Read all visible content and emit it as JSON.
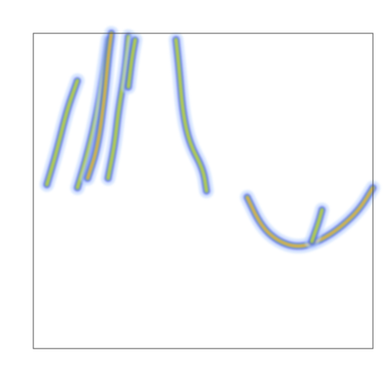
{
  "chart_data": {
    "type": "heatmap",
    "title": "",
    "xlabel": "",
    "ylabel": "",
    "axes_ticks_visible": false,
    "grid": false,
    "legend": "none",
    "colormap": [
      "#ffffff",
      "#bcd6ff",
      "#3a3aff",
      "#2e8b57",
      "#c8d84a",
      "#f0a04a"
    ],
    "series": [
      {
        "shape": "streak",
        "points": [
          [
            0.04,
            0.48
          ],
          [
            0.07,
            0.37
          ],
          [
            0.1,
            0.24
          ],
          [
            0.13,
            0.15
          ]
        ],
        "peak": 0.75
      },
      {
        "shape": "streak",
        "points": [
          [
            0.13,
            0.49
          ],
          [
            0.16,
            0.38
          ],
          [
            0.19,
            0.24
          ],
          [
            0.21,
            0.1
          ],
          [
            0.22,
            0.02
          ]
        ],
        "peak": 0.6
      },
      {
        "shape": "streak",
        "points": [
          [
            0.16,
            0.46
          ],
          [
            0.19,
            0.36
          ],
          [
            0.21,
            0.2
          ],
          [
            0.22,
            0.08
          ],
          [
            0.23,
            0.0
          ]
        ],
        "peak": 1.0
      },
      {
        "shape": "streak",
        "points": [
          [
            0.22,
            0.46
          ],
          [
            0.24,
            0.35
          ],
          [
            0.25,
            0.25
          ],
          [
            0.27,
            0.12
          ],
          [
            0.28,
            0.01
          ]
        ],
        "peak": 0.7
      },
      {
        "shape": "streak",
        "points": [
          [
            0.28,
            0.17
          ],
          [
            0.29,
            0.08
          ],
          [
            0.3,
            0.02
          ]
        ],
        "peak": 0.6
      },
      {
        "shape": "streak",
        "points": [
          [
            0.42,
            0.02
          ],
          [
            0.43,
            0.12
          ],
          [
            0.44,
            0.25
          ],
          [
            0.46,
            0.35
          ],
          [
            0.5,
            0.43
          ],
          [
            0.51,
            0.5
          ]
        ],
        "peak": 0.55
      },
      {
        "shape": "arc",
        "points": [
          [
            0.63,
            0.52
          ],
          [
            0.67,
            0.61
          ],
          [
            0.72,
            0.66
          ],
          [
            0.78,
            0.68
          ],
          [
            0.84,
            0.66
          ],
          [
            0.9,
            0.62
          ],
          [
            0.96,
            0.56
          ],
          [
            1.0,
            0.49
          ]
        ],
        "peak": 1.0
      },
      {
        "shape": "streak",
        "points": [
          [
            0.82,
            0.66
          ],
          [
            0.84,
            0.6
          ],
          [
            0.85,
            0.56
          ]
        ],
        "peak": 0.6
      }
    ]
  }
}
